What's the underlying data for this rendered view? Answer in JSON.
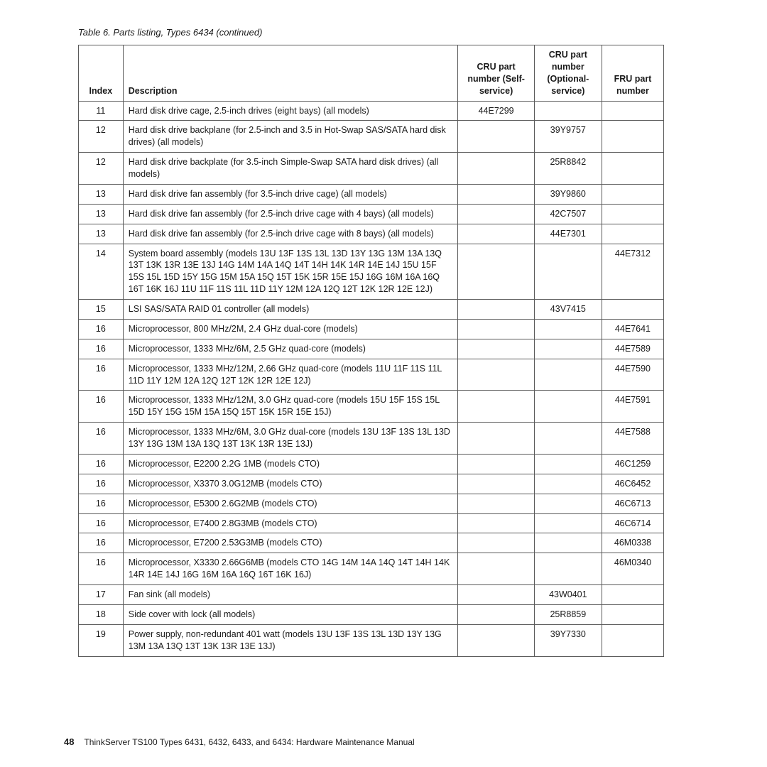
{
  "caption": "Table 6. Parts listing, Types 6434  (continued)",
  "headers": {
    "index": "Index",
    "description": "Description",
    "cru_self": "CRU part number (Self-service)",
    "cru_opt": "CRU part number (Optional-service)",
    "fru": "FRU part number"
  },
  "rows": [
    {
      "index": "11",
      "description": "Hard disk drive cage, 2.5-inch drives (eight bays) (all models)",
      "cru_self": "44E7299",
      "cru_opt": "",
      "fru": ""
    },
    {
      "index": "12",
      "description": "Hard disk drive backplane (for 2.5-inch and 3.5 in Hot-Swap SAS/SATA hard disk drives) (all models)",
      "cru_self": "",
      "cru_opt": "39Y9757",
      "fru": ""
    },
    {
      "index": "12",
      "description": "Hard disk drive backplate (for 3.5-inch Simple-Swap SATA hard disk drives) (all models)",
      "cru_self": "",
      "cru_opt": "25R8842",
      "fru": ""
    },
    {
      "index": "13",
      "description": "Hard disk drive fan assembly (for 3.5-inch drive cage) (all models)",
      "cru_self": "",
      "cru_opt": "39Y9860",
      "fru": ""
    },
    {
      "index": "13",
      "description": "Hard disk drive fan assembly (for 2.5-inch drive cage with 4 bays) (all models)",
      "cru_self": "",
      "cru_opt": "42C7507",
      "fru": ""
    },
    {
      "index": "13",
      "description": "Hard disk drive fan assembly (for 2.5-inch drive cage with 8 bays) (all models)",
      "cru_self": "",
      "cru_opt": "44E7301",
      "fru": ""
    },
    {
      "index": "14",
      "description": "System board assembly (models 13U 13F 13S 13L 13D 13Y 13G 13M 13A 13Q 13T 13K 13R 13E 13J 14G 14M 14A 14Q 14T 14H 14K 14R 14E 14J 15U 15F 15S 15L 15D 15Y 15G 15M 15A 15Q 15T 15K 15R 15E 15J 16G 16M 16A 16Q 16T 16K 16J 11U 11F 11S 11L 11D 11Y 12M 12A 12Q 12T 12K 12R 12E 12J)",
      "cru_self": "",
      "cru_opt": "",
      "fru": "44E7312"
    },
    {
      "index": "15",
      "description": "LSI SAS/SATA RAID 01 controller (all models)",
      "cru_self": "",
      "cru_opt": "43V7415",
      "fru": ""
    },
    {
      "index": "16",
      "description": "Microprocessor, 800 MHz/2M, 2.4 GHz dual-core (models)",
      "cru_self": "",
      "cru_opt": "",
      "fru": "44E7641"
    },
    {
      "index": "16",
      "description": "Microprocessor, 1333 MHz/6M, 2.5 GHz quad-core (models)",
      "cru_self": "",
      "cru_opt": "",
      "fru": "44E7589"
    },
    {
      "index": "16",
      "description": "Microprocessor, 1333 MHz/12M, 2.66 GHz quad-core (models 11U 11F 11S 11L 11D 11Y 12M 12A 12Q 12T 12K 12R 12E 12J)",
      "cru_self": "",
      "cru_opt": "",
      "fru": "44E7590"
    },
    {
      "index": "16",
      "description": "Microprocessor, 1333 MHz/12M, 3.0 GHz quad-core (models 15U 15F 15S 15L 15D 15Y 15G 15M 15A 15Q 15T 15K 15R 15E 15J)",
      "cru_self": "",
      "cru_opt": "",
      "fru": "44E7591"
    },
    {
      "index": "16",
      "description": "Microprocessor, 1333 MHz/6M, 3.0 GHz dual-core (models 13U 13F 13S 13L 13D 13Y 13G 13M 13A 13Q 13T 13K 13R 13E 13J)",
      "cru_self": "",
      "cru_opt": "",
      "fru": "44E7588"
    },
    {
      "index": "16",
      "description": "Microprocessor, E2200 2.2G 1MB (models CTO)",
      "cru_self": "",
      "cru_opt": "",
      "fru": "46C1259"
    },
    {
      "index": "16",
      "description": "Microprocessor, X3370 3.0G12MB (models CTO)",
      "cru_self": "",
      "cru_opt": "",
      "fru": "46C6452"
    },
    {
      "index": "16",
      "description": "Microprocessor, E5300 2.6G2MB (models CTO)",
      "cru_self": "",
      "cru_opt": "",
      "fru": "46C6713"
    },
    {
      "index": "16",
      "description": "Microprocessor, E7400 2.8G3MB (models CTO)",
      "cru_self": "",
      "cru_opt": "",
      "fru": "46C6714"
    },
    {
      "index": "16",
      "description": "Microprocessor, E7200 2.53G3MB (models CTO)",
      "cru_self": "",
      "cru_opt": "",
      "fru": "46M0338"
    },
    {
      "index": "16",
      "description": "Microprocessor, X3330 2.66G6MB (models CTO 14G 14M 14A 14Q 14T 14H 14K 14R 14E 14J 16G 16M 16A 16Q 16T 16K 16J)",
      "cru_self": "",
      "cru_opt": "",
      "fru": "46M0340"
    },
    {
      "index": "17",
      "description": "Fan sink (all models)",
      "cru_self": "",
      "cru_opt": "43W0401",
      "fru": ""
    },
    {
      "index": "18",
      "description": "Side cover with lock (all models)",
      "cru_self": "",
      "cru_opt": "25R8859",
      "fru": ""
    },
    {
      "index": "19",
      "description": "Power supply, non-redundant 401 watt (models 13U 13F 13S 13L 13D 13Y 13G 13M 13A 13Q 13T 13K 13R 13E 13J)",
      "cru_self": "",
      "cru_opt": "39Y7330",
      "fru": ""
    }
  ],
  "footer": {
    "page": "48",
    "text": "ThinkServer TS100 Types 6431, 6432, 6433, and 6434: Hardware Maintenance Manual"
  }
}
